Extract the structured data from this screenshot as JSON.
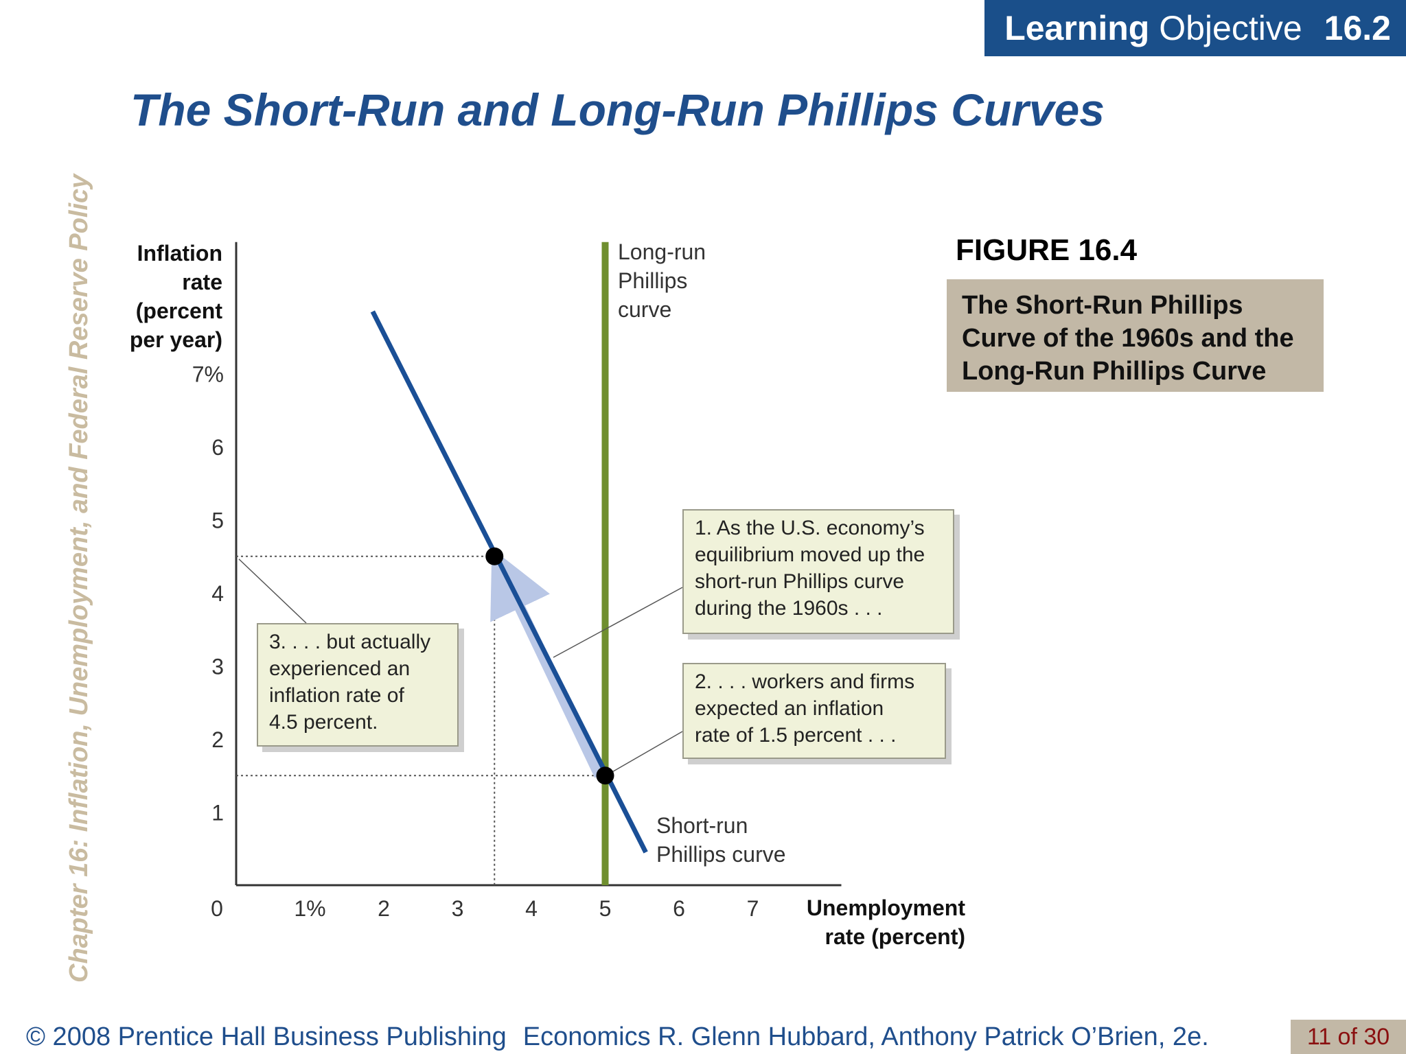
{
  "learning_objective": {
    "label_bold": "Learning",
    "label_rest": "Objective",
    "number": "16.2"
  },
  "slide_title": "The Short-Run and Long-Run Phillips Curves",
  "side_text": "Chapter 16:  Inflation, Unemployment, and Federal Reserve Policy",
  "figure": {
    "label": "FIGURE 16.4",
    "caption_lines": [
      "The Short-Run Phillips",
      "Curve of the 1960s and the",
      "Long-Run Phillips Curve"
    ]
  },
  "footer": {
    "copyright": "© 2008 Prentice Hall Business Publishing",
    "book": "Economics  R. Glenn Hubbard, Anthony Patrick O’Brien, 2e.",
    "page": "11 of 30"
  },
  "annotations": {
    "a1_lines": [
      "1. As the U.S. economy’s",
      "equilibrium moved up the",
      "short-run Phillips curve",
      "during the 1960s . . ."
    ],
    "a2_lines": [
      "2.  . . . workers and firms",
      "expected an inflation",
      "rate of 1.5 percent . . ."
    ],
    "a3_lines": [
      "3.  . . . but actually",
      "experienced an",
      "inflation rate of",
      "4.5 percent."
    ]
  },
  "chart_data": {
    "type": "line",
    "xlabel_lines": [
      "Unemployment",
      "rate (percent)"
    ],
    "ylabel_lines": [
      "Inflation",
      "rate",
      "(percent",
      "per year)"
    ],
    "xlim": [
      0,
      8.2
    ],
    "ylim": [
      0,
      7
    ],
    "x_ticks": [
      "0",
      "1%",
      "2",
      "3",
      "4",
      "5",
      "6",
      "7"
    ],
    "y_ticks": [
      "1",
      "2",
      "3",
      "4",
      "5",
      "6",
      "7%"
    ],
    "series": [
      {
        "name_lines": [
          "Short-run",
          "Phillips curve"
        ],
        "points": [
          [
            1.85,
            7.85
          ],
          [
            5.55,
            0.45
          ]
        ],
        "color": "#1a4f96"
      },
      {
        "name_lines": [
          "Long-run",
          "Phillips",
          "curve"
        ],
        "points": [
          [
            5,
            0
          ],
          [
            5,
            8.8
          ]
        ],
        "color": "#6f8f2f"
      }
    ],
    "points": [
      {
        "x": 3.5,
        "y": 4.5
      },
      {
        "x": 5,
        "y": 1.5
      }
    ],
    "movement_arrow": {
      "from": [
        5,
        1.5
      ],
      "to": [
        3.6,
        4.2
      ],
      "color": "#b9c7e6"
    },
    "grid": false,
    "legend": "none"
  }
}
